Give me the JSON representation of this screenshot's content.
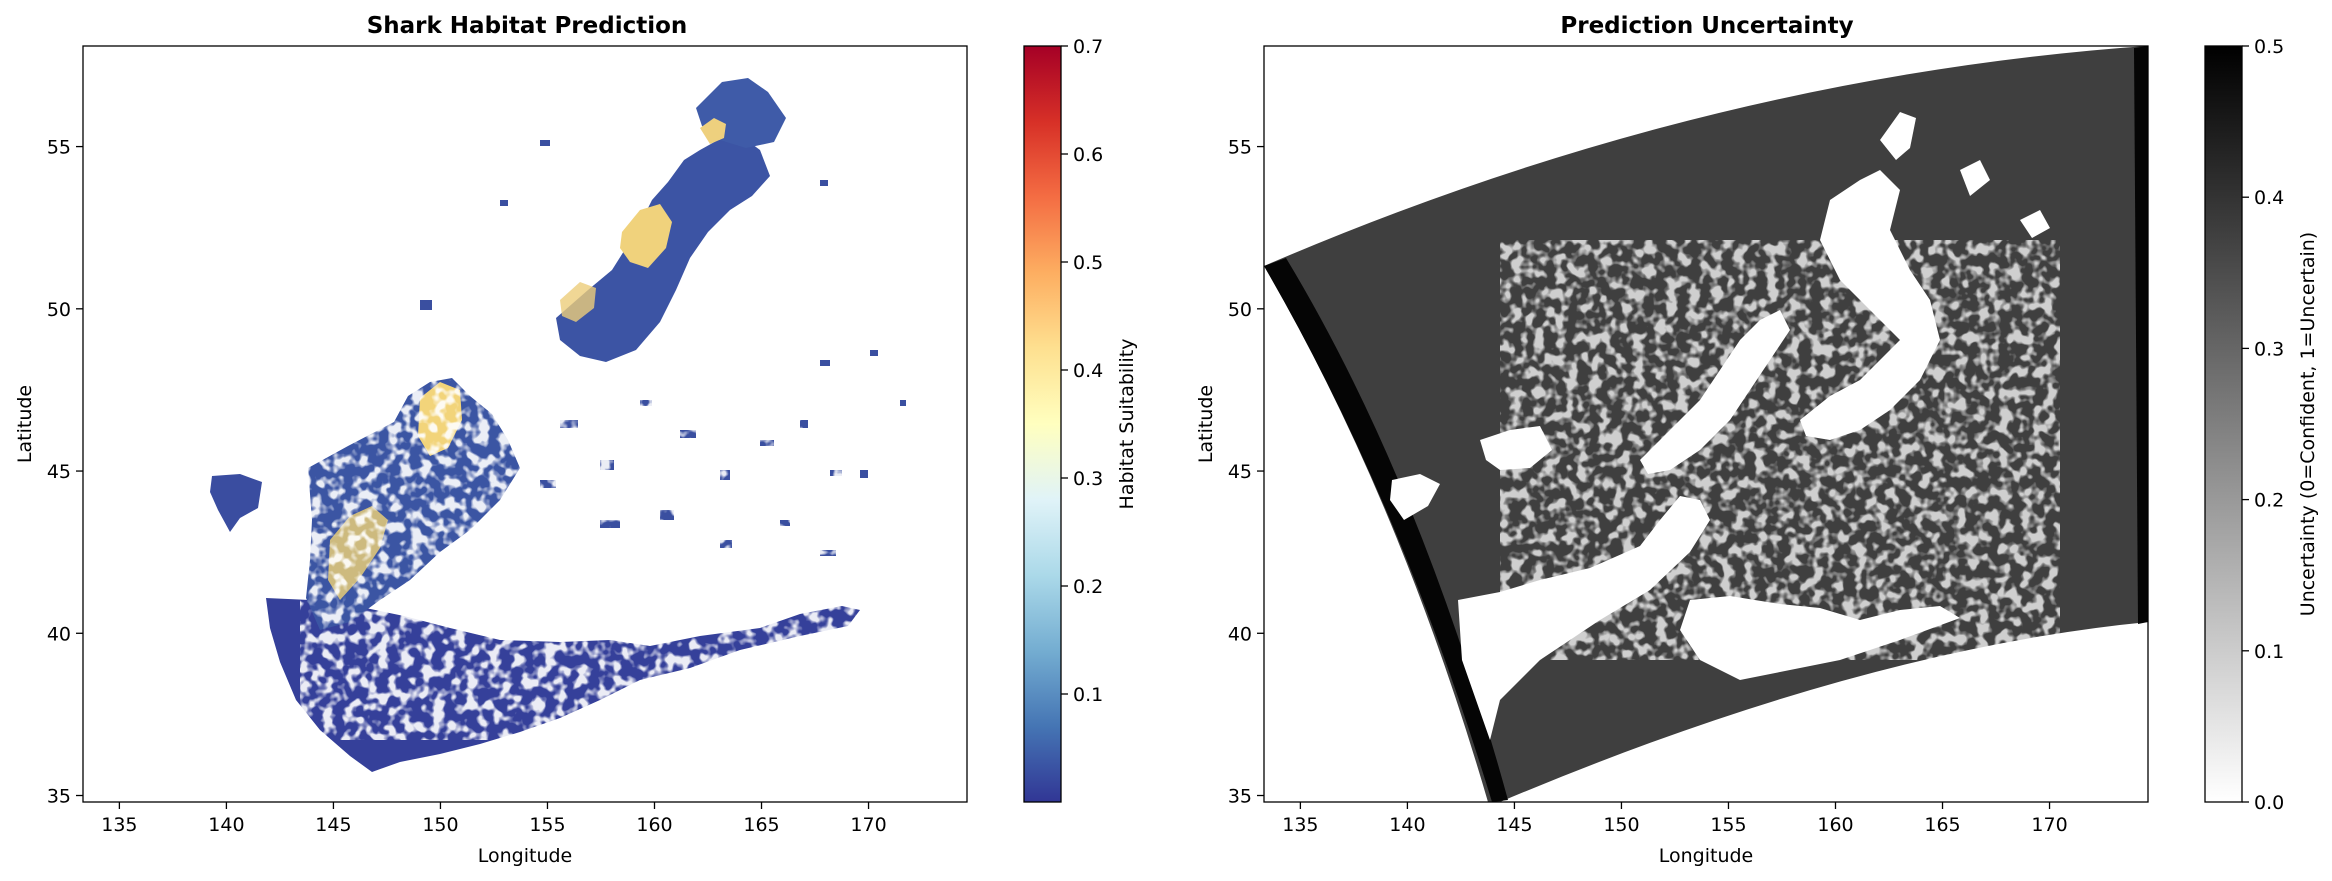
{
  "chart_data": [
    {
      "type": "heatmap",
      "title": "Shark Habitat Prediction",
      "xlabel": "Longitude",
      "ylabel": "Latitude",
      "xlim": [
        133.3,
        174.6
      ],
      "ylim": [
        34.8,
        58.1
      ],
      "xticks": [
        "135",
        "140",
        "145",
        "150",
        "155",
        "160",
        "165",
        "170"
      ],
      "yticks": [
        "35",
        "40",
        "45",
        "50",
        "55"
      ],
      "colorbar": {
        "label": "Habitat Suitability",
        "colormap": "RdYlBu_r",
        "range": [
          0.0,
          0.7
        ],
        "ticks": [
          "0.1",
          "0.2",
          "0.3",
          "0.4",
          "0.5",
          "0.6",
          "0.7"
        ]
      },
      "regions": [
        {
          "lon": [
            141.8,
            165.5
          ],
          "lat": [
            35.5,
            42.5
          ],
          "value": 0.05
        },
        {
          "lon": [
            143.5,
            156.0
          ],
          "lat": [
            41.0,
            47.8
          ],
          "value": 0.1
        },
        {
          "lon": [
            139.0,
            141.5
          ],
          "lat": [
            43.0,
            45.0
          ],
          "value": 0.05
        },
        {
          "lon": [
            154.5,
            163.5
          ],
          "lat": [
            47.0,
            53.5
          ],
          "value": 0.12
        },
        {
          "lon": [
            158.5,
            167.0
          ],
          "lat": [
            53.0,
            57.0
          ],
          "value": 0.1
        },
        {
          "lon": [
            149.0,
            151.5
          ],
          "lat": [
            45.0,
            47.8
          ],
          "value": 0.45
        },
        {
          "lon": [
            158.5,
            161.5
          ],
          "lat": [
            50.5,
            53.2
          ],
          "value": 0.42
        },
        {
          "lon": [
            162.0,
            163.5
          ],
          "lat": [
            55.0,
            56.0
          ],
          "value": 0.4
        }
      ]
    },
    {
      "type": "heatmap",
      "title": "Prediction Uncertainty",
      "xlabel": "Longitude",
      "ylabel": "Latitude",
      "xlim": [
        133.3,
        174.6
      ],
      "ylim": [
        34.8,
        58.1
      ],
      "xticks": [
        "135",
        "140",
        "145",
        "150",
        "155",
        "160",
        "165",
        "170"
      ],
      "yticks": [
        "35",
        "40",
        "45",
        "50",
        "55"
      ],
      "colorbar": {
        "label": "Uncertainty (0=Confident, 1=Uncertain)",
        "colormap": "Greys",
        "range": [
          0.0,
          0.5
        ],
        "ticks": [
          "0.0",
          "0.1",
          "0.2",
          "0.3",
          "0.4",
          "0.5"
        ]
      },
      "background_value": 0.38,
      "edge_value": 0.5,
      "cloud_value": 0.0
    }
  ]
}
